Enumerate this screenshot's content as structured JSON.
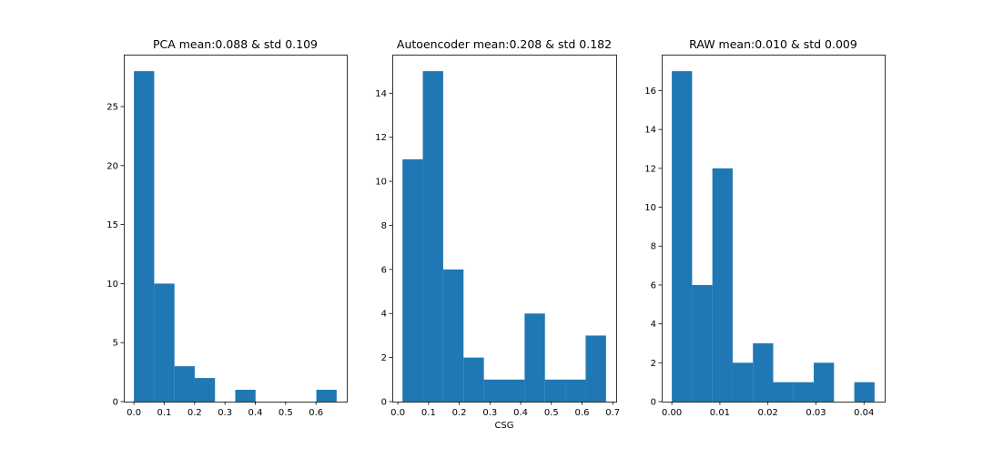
{
  "chart_data": [
    {
      "type": "bar",
      "title": "PCA mean:0.088 & std 0.109",
      "xlabel": "",
      "ylabel": "",
      "color": "#1f77b4",
      "bin_edges": [
        0.0,
        0.0668,
        0.1336,
        0.2004,
        0.2672,
        0.334,
        0.4008,
        0.4676,
        0.5344,
        0.6012,
        0.668
      ],
      "values": [
        28,
        10,
        3,
        2,
        0,
        1,
        0,
        0,
        0,
        1
      ],
      "xlim": [
        -0.0334,
        0.7014
      ],
      "ylim": [
        0,
        29.4
      ],
      "xticks": [
        0.0,
        0.1,
        0.2,
        0.3,
        0.4,
        0.5,
        0.6
      ],
      "xtick_labels": [
        "0.0",
        "0.1",
        "0.2",
        "0.3",
        "0.4",
        "0.5",
        "0.6"
      ],
      "yticks": [
        0,
        5,
        10,
        15,
        20,
        25
      ],
      "ytick_labels": [
        "0",
        "5",
        "10",
        "15",
        "20",
        "25"
      ]
    },
    {
      "type": "bar",
      "title": "Autoencoder mean:0.208 & std 0.182",
      "xlabel": "CSG",
      "ylabel": "",
      "color": "#1f77b4",
      "bin_edges": [
        0.015,
        0.0813,
        0.1476,
        0.2139,
        0.2802,
        0.3465,
        0.4128,
        0.4791,
        0.5454,
        0.6117,
        0.678
      ],
      "values": [
        11,
        15,
        6,
        2,
        1,
        1,
        4,
        1,
        1,
        3
      ],
      "xlim": [
        -0.0182,
        0.7112
      ],
      "ylim": [
        0,
        15.75
      ],
      "xticks": [
        0.0,
        0.1,
        0.2,
        0.3,
        0.4,
        0.5,
        0.6,
        0.7
      ],
      "xtick_labels": [
        "0.0",
        "0.1",
        "0.2",
        "0.3",
        "0.4",
        "0.5",
        "0.6",
        "0.7"
      ],
      "yticks": [
        0,
        2,
        4,
        6,
        8,
        10,
        12,
        14
      ],
      "ytick_labels": [
        "0",
        "2",
        "4",
        "6",
        "8",
        "10",
        "12",
        "14"
      ]
    },
    {
      "type": "bar",
      "title": "RAW mean:0.010 & std 0.009",
      "xlabel": "",
      "ylabel": "",
      "color": "#1f77b4",
      "bin_edges": [
        0.0,
        0.00422,
        0.00844,
        0.01266,
        0.01688,
        0.0211,
        0.02532,
        0.02954,
        0.03376,
        0.03798,
        0.0422
      ],
      "values": [
        17,
        6,
        12,
        2,
        3,
        1,
        1,
        2,
        0,
        1
      ],
      "xlim": [
        -0.00211,
        0.04431
      ],
      "ylim": [
        0,
        17.85
      ],
      "xticks": [
        0.0,
        0.01,
        0.02,
        0.03,
        0.04
      ],
      "xtick_labels": [
        "0.00",
        "0.01",
        "0.02",
        "0.03",
        "0.04"
      ],
      "yticks": [
        0,
        2,
        4,
        6,
        8,
        10,
        12,
        14,
        16
      ],
      "ytick_labels": [
        "0",
        "2",
        "4",
        "6",
        "8",
        "10",
        "12",
        "14",
        "16"
      ]
    }
  ]
}
